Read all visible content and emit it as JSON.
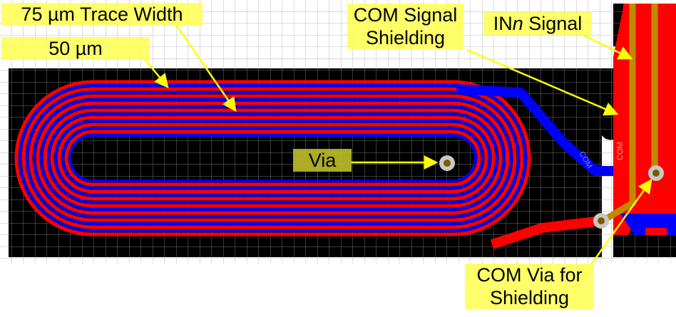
{
  "labels": {
    "trace_width": "75 µm Trace Width",
    "spacing": "50 µm",
    "com_shielding_line1": "COM Signal",
    "com_shielding_line2": "Shielding",
    "inn_prefix": "IN",
    "inn_italic": "n",
    "inn_suffix": " Signal",
    "via": "Via",
    "com_via_line1": "COM Via for",
    "com_via_line2": "Shielding"
  },
  "silkscreen": [
    "COM",
    "COM"
  ],
  "colors": {
    "board": "#000000",
    "top_copper": "#ff0000",
    "bottom_copper": "#0000ff",
    "inner_trace": "#c08a00",
    "via": "#c8c8c8",
    "annotation": "#ffff50",
    "grid": "#bbbbbb"
  }
}
